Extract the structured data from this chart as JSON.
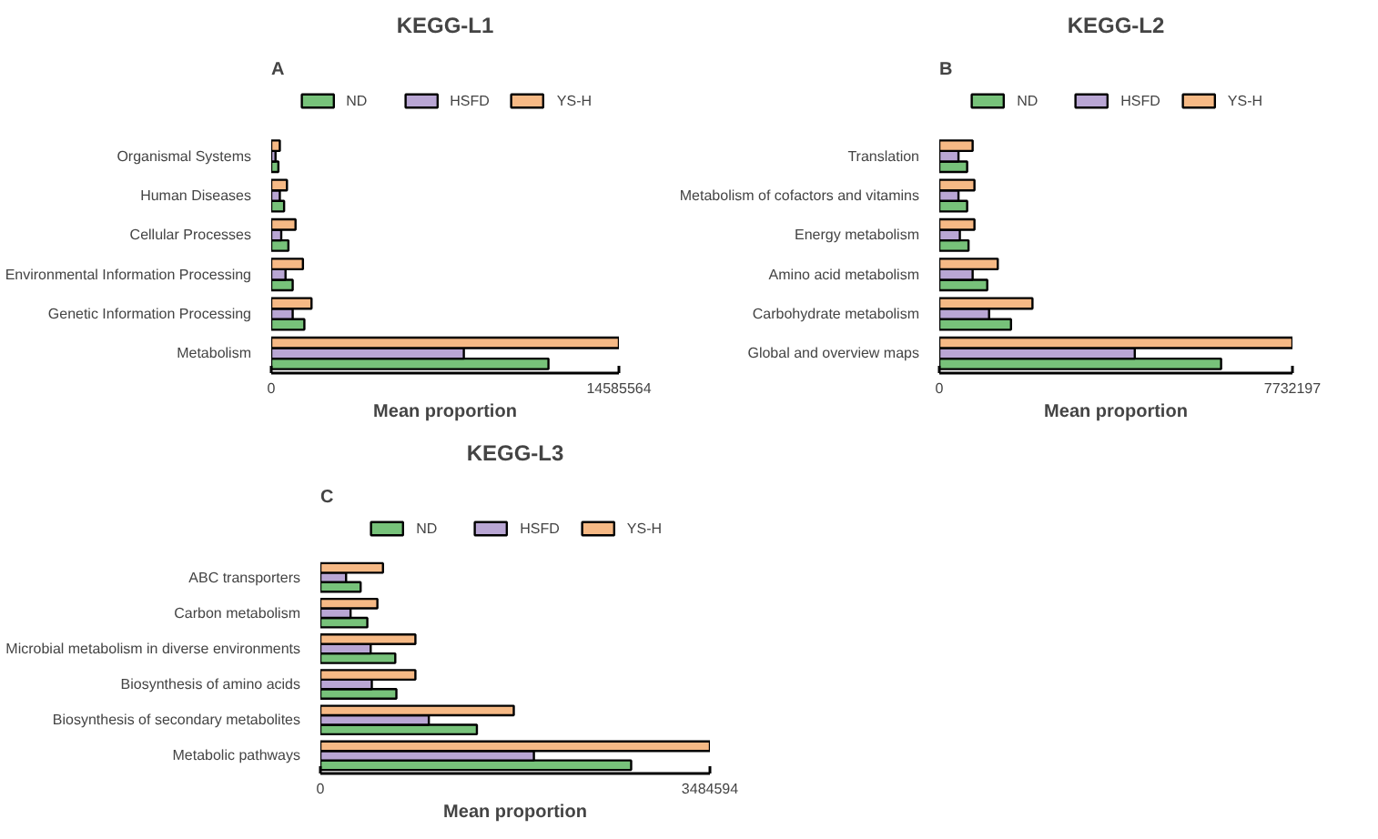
{
  "chart_data": [
    {
      "type": "bar",
      "orientation": "horizontal",
      "title": "KEGG-L1",
      "xlabel": "Mean proportion",
      "annotations": [
        "A"
      ],
      "legend": "top",
      "categories": [
        "Organismal Systems",
        "Human Diseases",
        "Cellular Processes",
        "Environmental Information Processing",
        "Genetic Information Processing",
        "Metabolism"
      ],
      "series": [
        {
          "name": "ND",
          "color": "#77c27a",
          "values": [
            300000,
            540000,
            720000,
            900000,
            1390000,
            11630000
          ]
        },
        {
          "name": "HSFD",
          "color": "#b9a6d4",
          "values": [
            180000,
            360000,
            420000,
            600000,
            900000,
            8080000
          ]
        },
        {
          "name": "YS-H",
          "color": "#f6b985",
          "values": [
            360000,
            660000,
            1020000,
            1330000,
            1690000,
            14585564
          ]
        }
      ],
      "xlim": [
        0,
        14585564
      ],
      "xticks": [
        0,
        14585564
      ]
    },
    {
      "type": "bar",
      "orientation": "horizontal",
      "title": "KEGG-L2",
      "xlabel": "Mean proportion",
      "annotations": [
        "B"
      ],
      "legend": "top",
      "categories": [
        "Translation",
        "Metabolism of cofactors and vitamins",
        "Energy metabolism",
        "Amino acid metabolism",
        "Carbohydrate metabolism",
        "Global and overview maps"
      ],
      "series": [
        {
          "name": "ND",
          "color": "#77c27a",
          "values": [
            610000,
            610000,
            640000,
            1050000,
            1570000,
            6170000
          ]
        },
        {
          "name": "HSFD",
          "color": "#b9a6d4",
          "values": [
            420000,
            420000,
            450000,
            730000,
            1090000,
            4280000
          ]
        },
        {
          "name": "YS-H",
          "color": "#f6b985",
          "values": [
            730000,
            770000,
            770000,
            1280000,
            2040000,
            7732197
          ]
        }
      ],
      "xlim": [
        0,
        7732197
      ],
      "xticks": [
        0,
        7732197
      ]
    },
    {
      "type": "bar",
      "orientation": "horizontal",
      "title": "KEGG-L3",
      "xlabel": "Mean proportion",
      "annotations": [
        "C"
      ],
      "legend": "top",
      "categories": [
        "ABC transporters",
        "Carbon metabolism",
        "Microbial metabolism in diverse environments",
        "Biosynthesis of amino acids",
        "Biosynthesis of secondary metabolites",
        "Metabolic pathways"
      ],
      "series": [
        {
          "name": "ND",
          "color": "#77c27a",
          "values": [
            360000,
            420000,
            670000,
            680000,
            1400000,
            2780000
          ]
        },
        {
          "name": "HSFD",
          "color": "#b9a6d4",
          "values": [
            230000,
            270000,
            450000,
            460000,
            970000,
            1910000
          ]
        },
        {
          "name": "YS-H",
          "color": "#f6b985",
          "values": [
            560000,
            510000,
            850000,
            850000,
            1730000,
            3484594
          ]
        }
      ],
      "xlim": [
        0,
        3484594
      ],
      "xticks": [
        0,
        3484594
      ]
    }
  ]
}
